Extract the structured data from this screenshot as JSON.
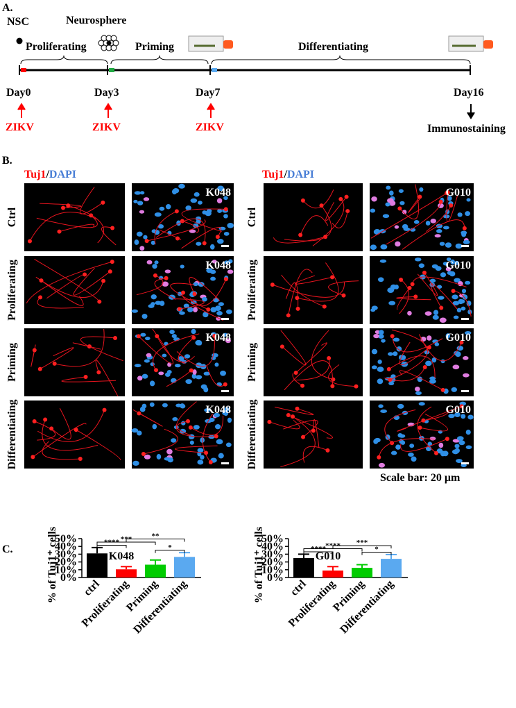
{
  "panel_a": {
    "label": "A.",
    "cell_labels": [
      "NSC",
      "Neurosphere"
    ],
    "stages": [
      "Proliferating",
      "Priming",
      "Differentiating"
    ],
    "days": [
      "Day0",
      "Day3",
      "Day7",
      "Day16"
    ],
    "treatment": "ZIKV",
    "readout": "Immunostaining"
  },
  "panel_b": {
    "label": "B.",
    "stain": {
      "marker": "Tuj1",
      "separator": "/",
      "nuclear": "DAPI"
    },
    "lines": [
      "K048",
      "G010"
    ],
    "rows": [
      "Ctrl",
      "Proliferating",
      "Priming",
      "Differentiating"
    ],
    "scale_bar": "Scale bar: 20 μm"
  },
  "panel_c": {
    "label": "C."
  },
  "chart_data": [
    {
      "type": "bar",
      "title": "K048",
      "ylabel": "% of Tuj1⁺ cells",
      "categories": [
        "ctrl",
        "Proliferating",
        "Priming",
        "Differentiating"
      ],
      "values": [
        31,
        10.5,
        16.5,
        26.5
      ],
      "errors": [
        7.5,
        3.5,
        6,
        5.5
      ],
      "colors": [
        "#000000",
        "#ff0000",
        "#00cc00",
        "#5aa9f0"
      ],
      "ylim": [
        0,
        50
      ],
      "yticks": [
        {
          "value": 0,
          "label": "0%"
        },
        {
          "value": 10,
          "label": "10%"
        },
        {
          "value": 20,
          "label": "20%"
        },
        {
          "value": 30,
          "label": "30%"
        },
        {
          "value": 40,
          "label": "40%"
        },
        {
          "value": 50,
          "label": "50%"
        }
      ],
      "annotations": [
        {
          "text": "***",
          "between": [
            "ctrl",
            "Priming"
          ]
        },
        {
          "text": "****",
          "between": [
            "ctrl",
            "Proliferating"
          ]
        },
        {
          "text": "**",
          "between": [
            "Proliferating",
            "Differentiating"
          ]
        },
        {
          "text": "*",
          "between": [
            "Priming",
            "Differentiating"
          ]
        }
      ]
    },
    {
      "type": "bar",
      "title": "G010",
      "ylabel": "% of Tuj1⁺ cells",
      "categories": [
        "ctrl",
        "Proliferating",
        "Priming",
        "Differentiating"
      ],
      "values": [
        25,
        9,
        12.5,
        24
      ],
      "errors": [
        5,
        5,
        4,
        5.5
      ],
      "colors": [
        "#000000",
        "#ff0000",
        "#00cc00",
        "#5aa9f0"
      ],
      "ylim": [
        0,
        50
      ],
      "yticks": [
        {
          "value": 0,
          "label": "0%"
        },
        {
          "value": 10,
          "label": "10%"
        },
        {
          "value": 20,
          "label": "20%"
        },
        {
          "value": 30,
          "label": "30%"
        },
        {
          "value": 40,
          "label": "40%"
        },
        {
          "value": 50,
          "label": "50%"
        }
      ],
      "annotations": [
        {
          "text": "****",
          "between": [
            "ctrl",
            "Priming"
          ]
        },
        {
          "text": "****",
          "between": [
            "ctrl",
            "Proliferating"
          ]
        },
        {
          "text": "***",
          "between": [
            "Proliferating",
            "Differentiating"
          ]
        },
        {
          "text": "*",
          "between": [
            "Priming",
            "Differentiating"
          ]
        }
      ]
    }
  ]
}
